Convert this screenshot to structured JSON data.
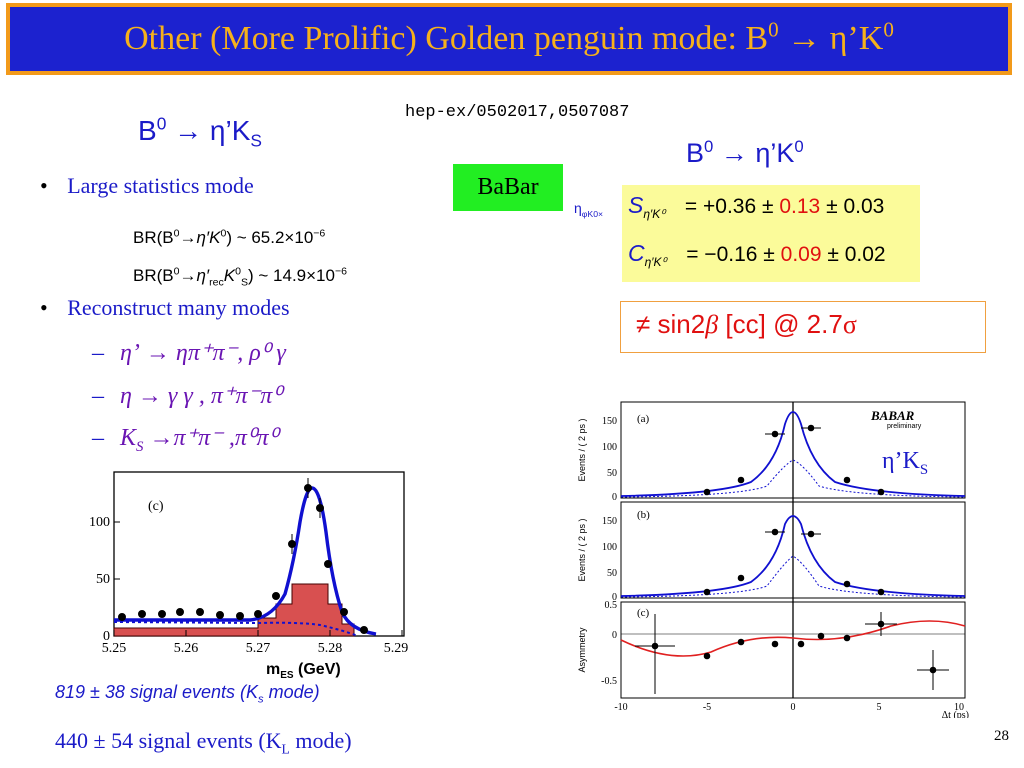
{
  "title": {
    "main": "Other (More Prolific) Golden penguin mode: B",
    "sup": "0",
    "arrow": "→",
    "eta": "η’K",
    "sup2": "0"
  },
  "reference": "hep-ex/0502017,0507087",
  "left_header": {
    "b": "B",
    "sup": "0",
    "arrow": "→",
    "eta": "η’K",
    "sub": "S"
  },
  "right_header": {
    "b": "B",
    "sup": "0",
    "arrow": "→",
    "eta": "η’K",
    "sup2": "0"
  },
  "bullets": {
    "one": "Large statistics mode",
    "two": "Reconstruct many modes"
  },
  "br": {
    "line1": {
      "prefix": "BR(B",
      "sup": "0",
      "mid": "→η′K",
      "sup2": "0",
      "value": ") ~ 65.2×10",
      "exp": "−6"
    },
    "line2": {
      "prefix": "BR(B",
      "sup": "0",
      "mid": "→η′",
      "sub": "rec",
      "k": "K",
      "ksup": "0",
      "ksub": "S",
      "value": ") ~ 14.9×10",
      "exp": "−6"
    }
  },
  "submodes": {
    "a": {
      "dash": "–",
      "lhs": "η’",
      "rhs": "→ ηπ⁺π⁻, ρ⁰ γ"
    },
    "b": {
      "dash": "–",
      "lhs": "η",
      "rhs": "→ γ γ , π⁺π⁻π⁰"
    },
    "c": {
      "dash": "–",
      "lhs": "K",
      "sub": "S",
      "rhs": "→π⁺π⁻ ,π⁰π⁰"
    }
  },
  "babar_label": "BaBar",
  "params": {
    "side_label": "η",
    "side_sub": "φK0×",
    "s": {
      "sym": "S",
      "sub": "η′K⁰",
      "eq": "= +0.36 ±",
      "stat": "0.13",
      "syst": "± 0.03"
    },
    "c": {
      "sym": "C",
      "sub": "η′K⁰",
      "eq": "= −0.16 ±",
      "stat": "0.09",
      "syst": "± 0.02"
    }
  },
  "sin_box": {
    "neq": "≠",
    "text": "sin2",
    "beta": "β",
    "tail": " [cc] @ 2.7",
    "sigma": "σ"
  },
  "etaks_label": {
    "text": "η’K",
    "sub": "S"
  },
  "signal_ks": {
    "text": "819 ± 38 signal events (K",
    "sub": "s",
    "tail": " mode)"
  },
  "signal_kl": {
    "text": "440 ± 54 signal events (K",
    "sub": "L",
    "tail": " mode)"
  },
  "page_number": "28",
  "mes_plot": {
    "panel": "(c)",
    "xlabel": "m",
    "xsub": "ES",
    "xunit": " (GeV)",
    "xticks": [
      "5.25",
      "5.26",
      "5.27",
      "5.28",
      "5.29"
    ],
    "yticks": [
      "0",
      "50",
      "100"
    ],
    "colors": {
      "curve": "#1010d0",
      "hist": "#d85050"
    }
  },
  "dt_plot": {
    "panels": [
      "(a)",
      "(b)",
      "(c)"
    ],
    "logo": "BABAR",
    "logo_sub": "preliminary",
    "ylabels": [
      "Events / ( 2 ps )",
      "Events / ( 2 ps )",
      "Asymmetry"
    ],
    "yticks_a": [
      "0",
      "50",
      "100",
      "150"
    ],
    "yticks_b": [
      "0",
      "50",
      "100",
      "150"
    ],
    "yticks_c": [
      "-0.5",
      "0",
      "0.5"
    ],
    "xticks": [
      "-10",
      "-5",
      "0",
      "5",
      "10"
    ],
    "xlabel": "Δt (ps)",
    "colors": {
      "curve": "#1010d0",
      "asym": "#e02020"
    }
  }
}
